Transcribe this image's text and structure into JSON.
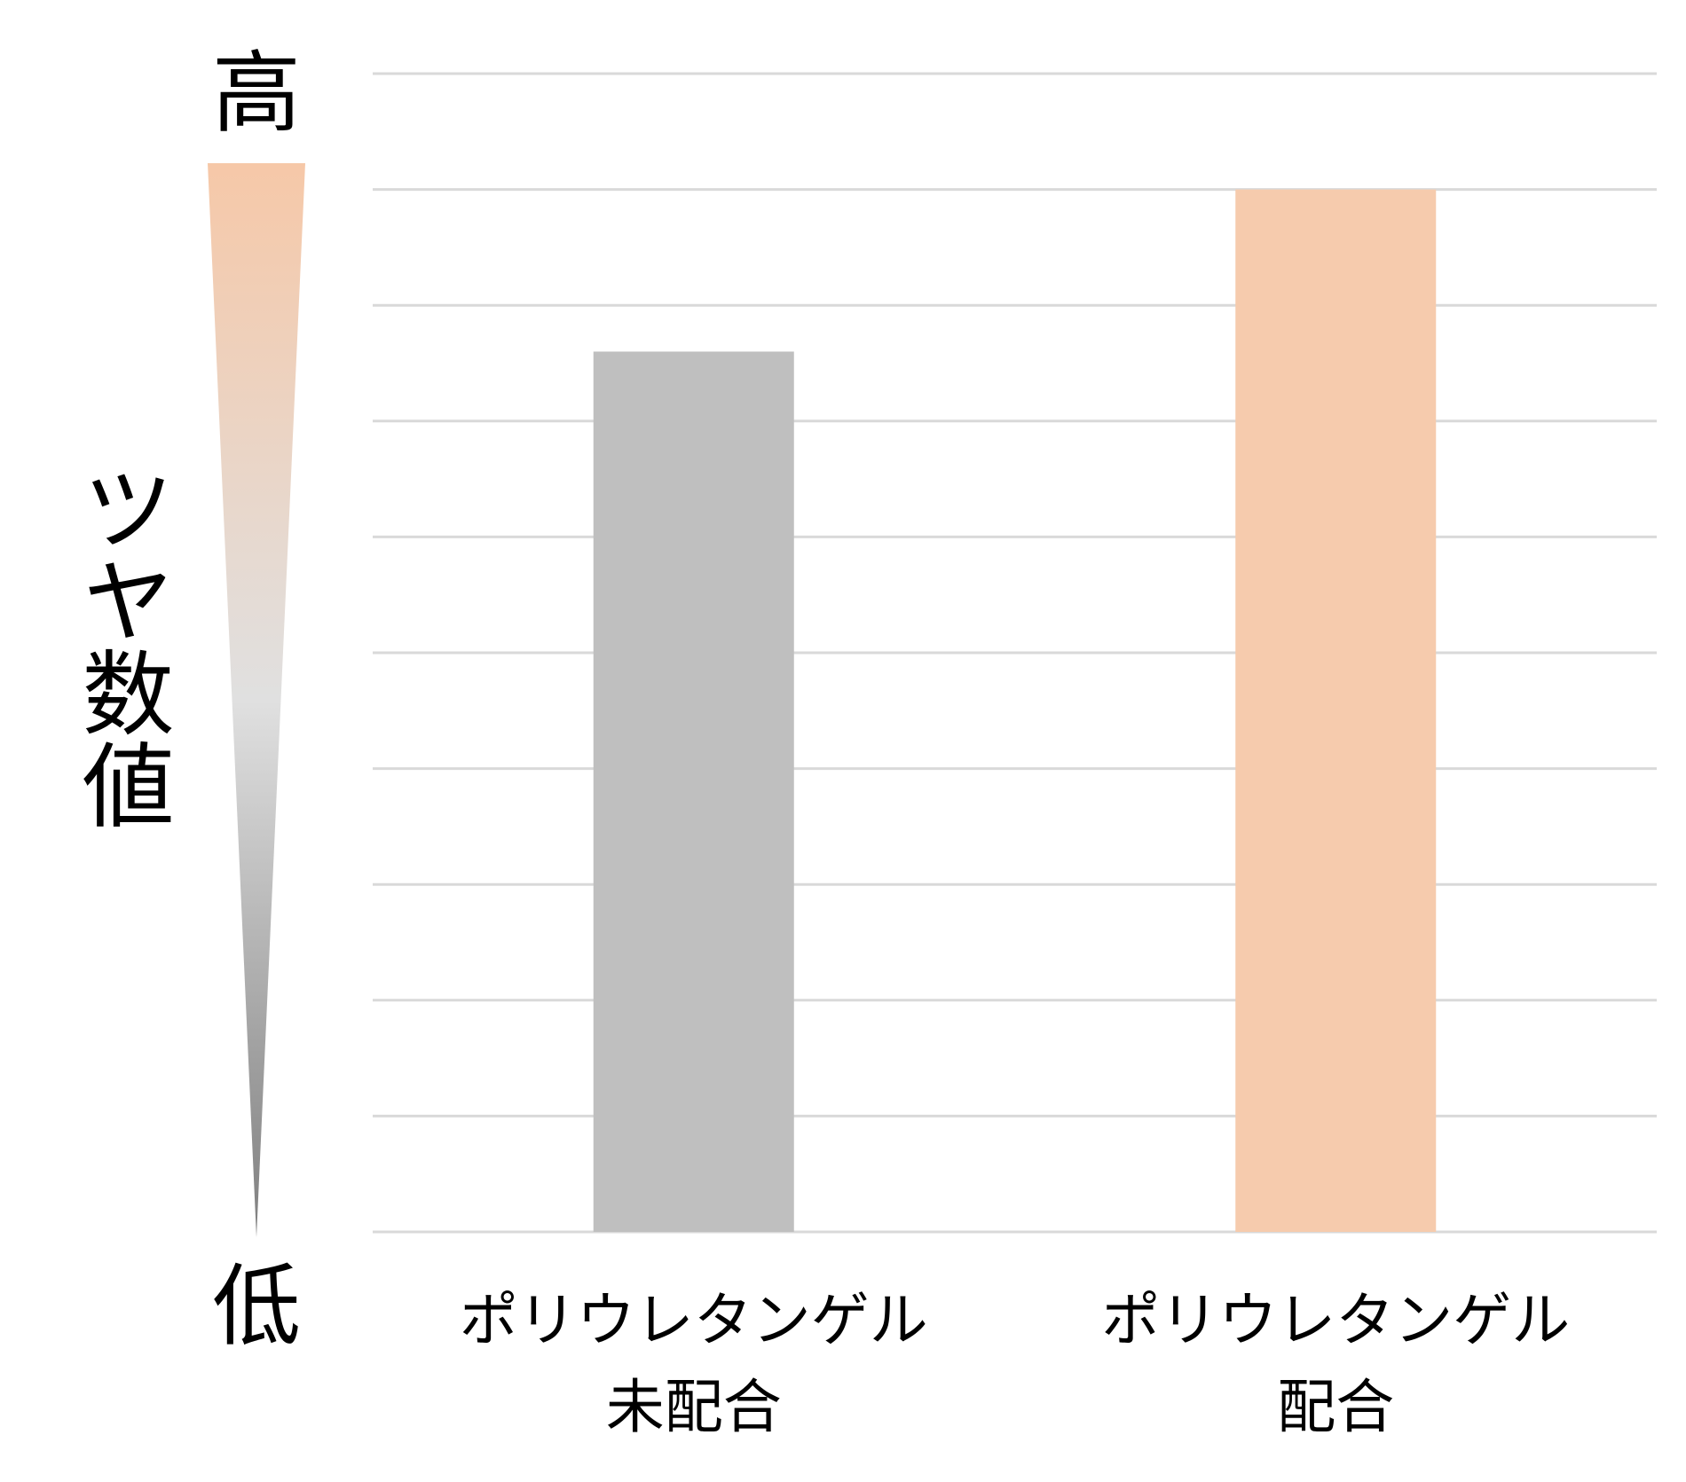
{
  "chart_data": {
    "type": "bar",
    "y_label": "ツヤ数値",
    "y_high_label": "高",
    "y_low_label": "低",
    "categories": [
      [
        "ポリウレタンゲル",
        "未配合"
      ],
      [
        "ポリウレタンゲル",
        "配合"
      ]
    ],
    "values": [
      7.6,
      9
    ],
    "colors": [
      "#bfbfbf",
      "#f6cbad"
    ],
    "ylim": [
      0,
      10
    ],
    "yticks": [
      0,
      1,
      2,
      3,
      4,
      5,
      6,
      7,
      8,
      9,
      10
    ],
    "grid": true
  }
}
